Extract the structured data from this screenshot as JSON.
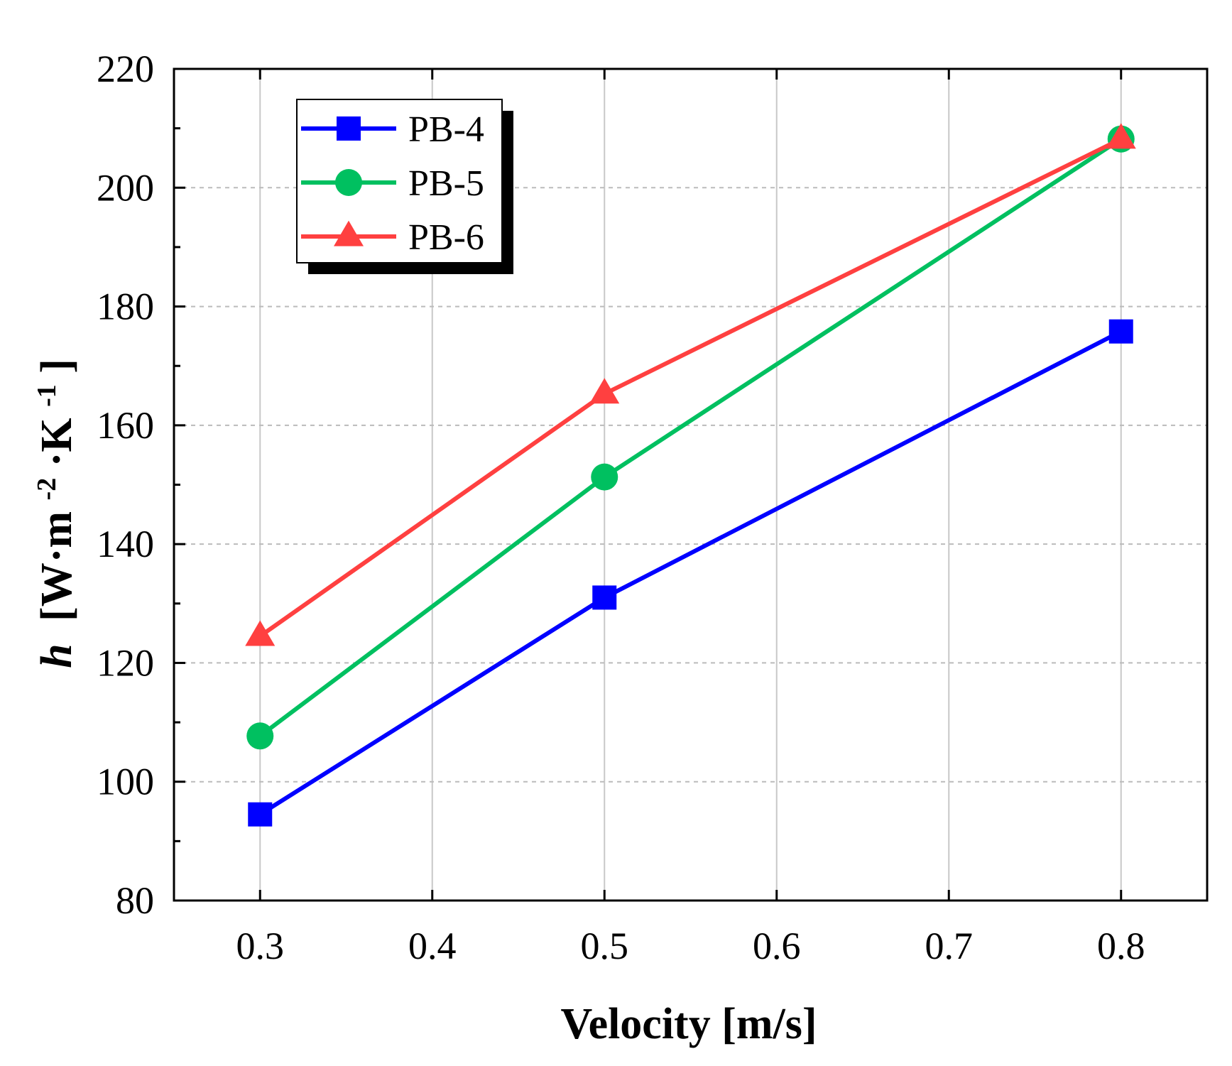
{
  "chart_data": {
    "type": "line",
    "title": "",
    "xlabel": "Velocity [m/s]",
    "ylabel": {
      "symbol": "h",
      "open": "[W·m",
      "exp1": "-2",
      "mid": "·K",
      "exp2": "-1",
      "close": "]"
    },
    "xlim": [
      0.25,
      0.85
    ],
    "ylim": [
      80,
      220
    ],
    "x": [
      0.3,
      0.5,
      0.8
    ],
    "xticks": [
      0.3,
      0.4,
      0.5,
      0.6,
      0.7,
      0.8
    ],
    "xtick_labels": [
      "0.3",
      "0.4",
      "0.5",
      "0.6",
      "0.7",
      "0.8"
    ],
    "yticks": [
      80,
      100,
      120,
      140,
      160,
      180,
      200,
      220
    ],
    "ytick_labels": [
      "80",
      "100",
      "120",
      "140",
      "160",
      "180",
      "200",
      "220"
    ],
    "grid": true,
    "legend_position": "top-left",
    "series": [
      {
        "name": "PB-4",
        "marker": "square",
        "color": "#0000ff",
        "values": [
          94.5,
          131,
          175.8
        ]
      },
      {
        "name": "PB-5",
        "marker": "circle",
        "color": "#00c060",
        "values": [
          107.7,
          151.3,
          208.2
        ]
      },
      {
        "name": "PB-6",
        "marker": "triangle",
        "color": "#ff4040",
        "values": [
          124.5,
          165.3,
          208.2
        ]
      }
    ]
  }
}
